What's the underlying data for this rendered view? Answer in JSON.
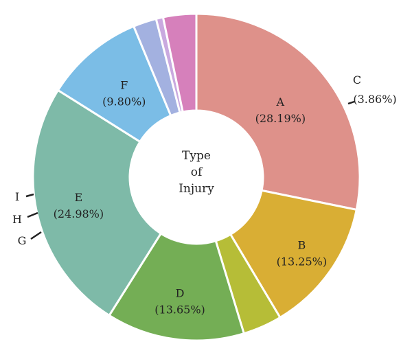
{
  "chart_data": {
    "type": "pie",
    "variant": "donut",
    "center_label": [
      "Type",
      "of",
      "Injury"
    ],
    "slices": [
      {
        "label": "A",
        "value": 28.19,
        "display": "(28.19%)",
        "color": "#de918a"
      },
      {
        "label": "B",
        "value": 13.25,
        "display": "(13.25%)",
        "color": "#d9ae34"
      },
      {
        "label": "C",
        "value": 3.86,
        "display": "(3.86%)",
        "color": "#b6bd37"
      },
      {
        "label": "D",
        "value": 13.65,
        "display": "(13.65%)",
        "color": "#74ae55"
      },
      {
        "label": "E",
        "value": 24.98,
        "display": "(24.98%)",
        "color": "#7ebaa8"
      },
      {
        "label": "F",
        "value": 9.8,
        "display": "(9.80%)",
        "color": "#7bbde6"
      },
      {
        "label": "G",
        "value": 2.3,
        "display": "",
        "color": "#a3b1e0"
      },
      {
        "label": "H",
        "value": 0.7,
        "display": "",
        "color": "#c9a9df"
      },
      {
        "label": "I",
        "value": 3.27,
        "display": "",
        "color": "#d680bb"
      }
    ],
    "legend": "none"
  }
}
